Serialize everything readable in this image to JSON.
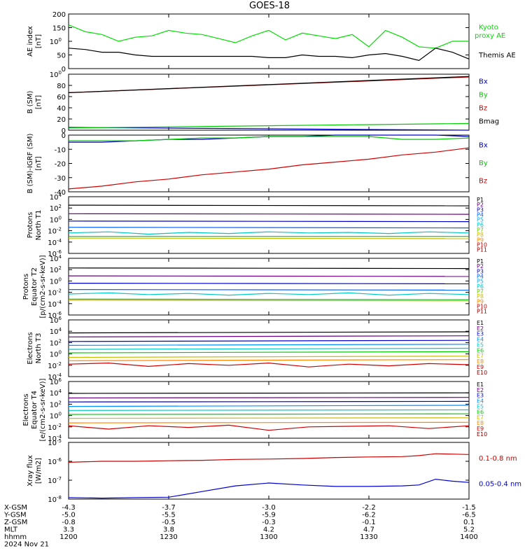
{
  "title": "GOES-18",
  "bottom_table": {
    "rows": [
      {
        "label": "X-GSM",
        "values": [
          "-4.3",
          "-3.7",
          "-3.0",
          "-2.2",
          "-1.5"
        ]
      },
      {
        "label": "Y-GSM",
        "values": [
          "-5.0",
          "-5.5",
          "-5.9",
          "-6.2",
          "-6.5"
        ]
      },
      {
        "label": "Z-GSM",
        "values": [
          "-0.8",
          "-0.5",
          "-0.3",
          "-0.1",
          "0.1"
        ]
      },
      {
        "label": "MLT",
        "values": [
          "3.3",
          "3.8",
          "4.2",
          "4.7",
          "5.2"
        ]
      },
      {
        "label": "hhmm",
        "values": [
          "1200",
          "1230",
          "1300",
          "1330",
          "1400"
        ]
      }
    ],
    "date": "2024 Nov 21"
  },
  "chart_data": [
    {
      "type": "line",
      "ylabel": [
        "AE index",
        "[nT]"
      ],
      "ylim": [
        0,
        200
      ],
      "yticks": [
        "0",
        "50",
        "100",
        "150",
        "200"
      ],
      "x": [
        0,
        5,
        10,
        15,
        20,
        25,
        30,
        35,
        40,
        45,
        50,
        55,
        60,
        65,
        70,
        75,
        80,
        85,
        90,
        95,
        100,
        105,
        110,
        115,
        120
      ],
      "series": [
        {
          "name": "Kyoto proxy AE",
          "color": "#00dd00",
          "values": [
            160,
            135,
            125,
            100,
            115,
            120,
            140,
            130,
            125,
            110,
            95,
            120,
            140,
            105,
            130,
            120,
            110,
            125,
            80,
            140,
            115,
            80,
            75,
            100,
            100
          ]
        },
        {
          "name": "Themis AE",
          "color": "#000000",
          "values": [
            75,
            70,
            60,
            60,
            50,
            45,
            45,
            45,
            45,
            45,
            45,
            45,
            40,
            40,
            50,
            45,
            45,
            40,
            50,
            55,
            45,
            30,
            75,
            60,
            35
          ]
        }
      ]
    },
    {
      "type": "line",
      "ylabel": [
        "B (SM)",
        "[nT]"
      ],
      "ylim": [
        0,
        100
      ],
      "yticks": [
        "0",
        "20",
        "40",
        "60",
        "80",
        "100"
      ],
      "x": [
        0,
        120
      ],
      "series": [
        {
          "name": "Bx",
          "color": "#0000cc",
          "values": [
            5,
            0
          ]
        },
        {
          "name": "By",
          "color": "#00cc00",
          "values": [
            4,
            12
          ]
        },
        {
          "name": "Bz",
          "color": "#cc0000",
          "values": [
            67,
            95
          ]
        },
        {
          "name": "Bmag",
          "color": "#000000",
          "values": [
            67,
            96
          ]
        }
      ]
    },
    {
      "type": "line",
      "ylabel": [
        "B (SM)-IGRF (SM)",
        "[nT]"
      ],
      "ylim": [
        -40,
        0
      ],
      "yticks": [
        "-40",
        "-30",
        "-20",
        "-10",
        "0"
      ],
      "x": [
        0,
        10,
        20,
        30,
        40,
        50,
        60,
        70,
        80,
        90,
        100,
        110,
        120
      ],
      "series": [
        {
          "name": "Bx",
          "color": "#0000cc",
          "values": [
            -5,
            -5,
            -4,
            -3,
            -3,
            -2,
            -1,
            -1,
            0,
            0,
            0,
            0,
            -1
          ]
        },
        {
          "name": "By",
          "color": "#00cc00",
          "values": [
            -4,
            -4,
            -4,
            -3,
            -2,
            -2,
            -1,
            -1,
            -1,
            -1,
            -3,
            -3,
            -2
          ]
        },
        {
          "name": "Bz",
          "color": "#cc0000",
          "values": [
            -38,
            -36,
            -33,
            -31,
            -28,
            -26,
            -24,
            -21,
            -19,
            -17,
            -14,
            -12,
            -9
          ]
        }
      ]
    },
    {
      "type": "line",
      "ylabel": [
        "Protons",
        "North T1"
      ],
      "ylim": [
        -6,
        4
      ],
      "log": true,
      "yticks": [
        "10-6",
        "10-4",
        "10-2",
        "100",
        "102",
        "104"
      ],
      "channels": [
        "P1",
        "P2",
        "P3",
        "P4",
        "P5",
        "P6",
        "P7",
        "P8",
        "P9",
        "P10",
        "P11"
      ],
      "channel_colors": [
        "#000000",
        "#6a0080",
        "#0000cc",
        "#0060ff",
        "#00aaff",
        "#00c8c8",
        "#66cc00",
        "#ccbb00",
        "#ff8800",
        "#cc0000",
        "#880000"
      ],
      "series": [
        {
          "name": "P1",
          "color": "#000000",
          "values": [
            2.5,
            2.4
          ]
        },
        {
          "name": "P2",
          "color": "#6a0080",
          "values": [
            1.0,
            0.9
          ]
        },
        {
          "name": "P3",
          "color": "#0000cc",
          "values": [
            -0.3,
            -0.4
          ]
        },
        {
          "name": "P4",
          "color": "#0060ff",
          "values": [
            -1.4,
            -1.5
          ]
        },
        {
          "name": "P5",
          "color": "#00c8c8",
          "values": [
            -2.4,
            -2.2,
            -2.6,
            -2.3,
            -2.5,
            -2.2,
            -2.4,
            -2.3,
            -2.5,
            -2.2,
            -2.4
          ]
        },
        {
          "name": "P6",
          "color": "#00cc00",
          "values": [
            -3.0,
            -3.0
          ]
        },
        {
          "name": "P7",
          "color": "#ccbb00",
          "values": [
            -3.3,
            -3.4
          ]
        }
      ]
    },
    {
      "type": "line",
      "ylabel": [
        "Protons",
        "Equator T2",
        "[p/(cm2-s-sr-keV)]"
      ],
      "ylim": [
        -6,
        4
      ],
      "log": true,
      "yticks": [
        "10-6",
        "10-4",
        "10-2",
        "100",
        "102",
        "104"
      ],
      "channels": [
        "P1",
        "P2",
        "P3",
        "P4",
        "P5",
        "P6",
        "P7",
        "P8",
        "P9",
        "P10",
        "P11"
      ],
      "channel_colors": [
        "#000000",
        "#6a0080",
        "#0000cc",
        "#0060ff",
        "#00aaff",
        "#00c8c8",
        "#66cc00",
        "#ccbb00",
        "#ff8800",
        "#cc0000",
        "#880000"
      ],
      "series": [
        {
          "name": "P1",
          "color": "#000000",
          "values": [
            2.3,
            2.2
          ]
        },
        {
          "name": "P2",
          "color": "#6a0080",
          "values": [
            0.9,
            0.8
          ]
        },
        {
          "name": "P3",
          "color": "#0000cc",
          "values": [
            -0.4,
            -0.5
          ]
        },
        {
          "name": "P4",
          "color": "#0060ff",
          "values": [
            -1.5,
            -1.6
          ]
        },
        {
          "name": "P5",
          "color": "#00c8c8",
          "values": [
            -2.3,
            -2.1,
            -2.4,
            -2.2,
            -2.5,
            -2.2,
            -2.4,
            -2.1,
            -2.5,
            -2.2,
            -2.4
          ]
        },
        {
          "name": "P6",
          "color": "#00cc00",
          "values": [
            -3.2,
            -3.3
          ]
        },
        {
          "name": "P7",
          "color": "#ccbb00",
          "values": [
            -3.4,
            -3.5
          ]
        }
      ]
    },
    {
      "type": "line",
      "ylabel": [
        "Electrons",
        "North T3"
      ],
      "ylim": [
        -4,
        6
      ],
      "log": true,
      "yticks": [
        "10-4",
        "10-2",
        "100",
        "102",
        "104",
        "106"
      ],
      "channels": [
        "E1",
        "E2",
        "E3",
        "E4",
        "E5",
        "E6",
        "E7",
        "E8",
        "E9",
        "E10"
      ],
      "channel_colors": [
        "#000000",
        "#6a0080",
        "#0000cc",
        "#0090ff",
        "#00c8c8",
        "#00cc00",
        "#ccbb00",
        "#ff8800",
        "#cc0000",
        "#880000"
      ],
      "series": [
        {
          "name": "E1",
          "color": "#000000",
          "values": [
            3.7,
            3.9
          ]
        },
        {
          "name": "E2",
          "color": "#6a0080",
          "values": [
            3.0,
            3.2
          ]
        },
        {
          "name": "E3",
          "color": "#0000cc",
          "values": [
            2.2,
            2.4
          ]
        },
        {
          "name": "E4",
          "color": "#0090ff",
          "values": [
            1.5,
            1.7
          ]
        },
        {
          "name": "E5",
          "color": "#00c8c8",
          "values": [
            0.8,
            1.0
          ]
        },
        {
          "name": "E6",
          "color": "#00cc00",
          "values": [
            0.2,
            0.4
          ]
        },
        {
          "name": "E7",
          "color": "#ccbb00",
          "values": [
            -0.6,
            -0.4
          ]
        },
        {
          "name": "E8",
          "color": "#ff8800",
          "values": [
            -1.2,
            -1.0
          ]
        },
        {
          "name": "E9",
          "color": "#cc0000",
          "values": [
            -1.8,
            -1.6,
            -2.2,
            -1.7,
            -2.0,
            -1.6,
            -2.3,
            -1.8,
            -2.1,
            -1.7,
            -1.9
          ]
        }
      ]
    },
    {
      "type": "line",
      "ylabel": [
        "Electrons",
        "Equator T4",
        "[e/(cm2-s-sr-keV)]"
      ],
      "ylim": [
        -4,
        6
      ],
      "log": true,
      "yticks": [
        "10-4",
        "10-2",
        "100",
        "102",
        "104",
        "106"
      ],
      "channels": [
        "E1",
        "E2",
        "E3",
        "E4",
        "E5",
        "E6",
        "E7",
        "E8",
        "E9",
        "E10"
      ],
      "channel_colors": [
        "#000000",
        "#6a0080",
        "#0000cc",
        "#0090ff",
        "#00c8c8",
        "#00cc00",
        "#ccbb00",
        "#ff8800",
        "#cc0000",
        "#880000"
      ],
      "series": [
        {
          "name": "E1",
          "color": "#000000",
          "values": [
            3.9,
            4.0
          ]
        },
        {
          "name": "E2",
          "color": "#6a0080",
          "values": [
            3.1,
            3.2
          ]
        },
        {
          "name": "E3",
          "color": "#0000cc",
          "values": [
            2.4,
            2.5
          ]
        },
        {
          "name": "E4",
          "color": "#0090ff",
          "values": [
            1.6,
            1.8
          ]
        },
        {
          "name": "E5",
          "color": "#00c8c8",
          "values": [
            0.9,
            1.0
          ]
        },
        {
          "name": "E6",
          "color": "#00cc00",
          "values": [
            0.2,
            0.3
          ]
        },
        {
          "name": "E7",
          "color": "#ccbb00",
          "values": [
            -0.5,
            -0.4
          ]
        },
        {
          "name": "E8",
          "color": "#ff8800",
          "values": [
            -1.3,
            -1.2
          ]
        },
        {
          "name": "E9",
          "color": "#cc0000",
          "values": [
            -1.8,
            -2.4,
            -1.8,
            -2.1,
            -1.7,
            -2.6,
            -2.0,
            -1.9,
            -1.8,
            -2.3,
            -1.8
          ]
        }
      ]
    },
    {
      "type": "line",
      "ylabel": [
        "Xray flux",
        "[W/m2]"
      ],
      "ylim": [
        -8,
        -5
      ],
      "log": true,
      "yticks": [
        "10-8",
        "10-7",
        "10-6",
        "10-5"
      ],
      "x": [
        0,
        10,
        20,
        30,
        40,
        50,
        60,
        70,
        80,
        90,
        100,
        105,
        110,
        115,
        120
      ],
      "series": [
        {
          "name": "0.1-0.8 nm",
          "color": "#cc0000",
          "values": [
            -6.05,
            -6.0,
            -6.0,
            -5.97,
            -5.95,
            -5.9,
            -5.88,
            -5.85,
            -5.8,
            -5.77,
            -5.75,
            -5.7,
            -5.6,
            -5.62,
            -5.64
          ]
        },
        {
          "name": "0.05-0.4 nm",
          "color": "#0000cc",
          "values": [
            -7.92,
            -7.95,
            -7.92,
            -7.9,
            -7.6,
            -7.3,
            -7.15,
            -7.25,
            -7.33,
            -7.33,
            -7.3,
            -7.25,
            -6.95,
            -7.05,
            -7.12
          ]
        }
      ]
    }
  ]
}
